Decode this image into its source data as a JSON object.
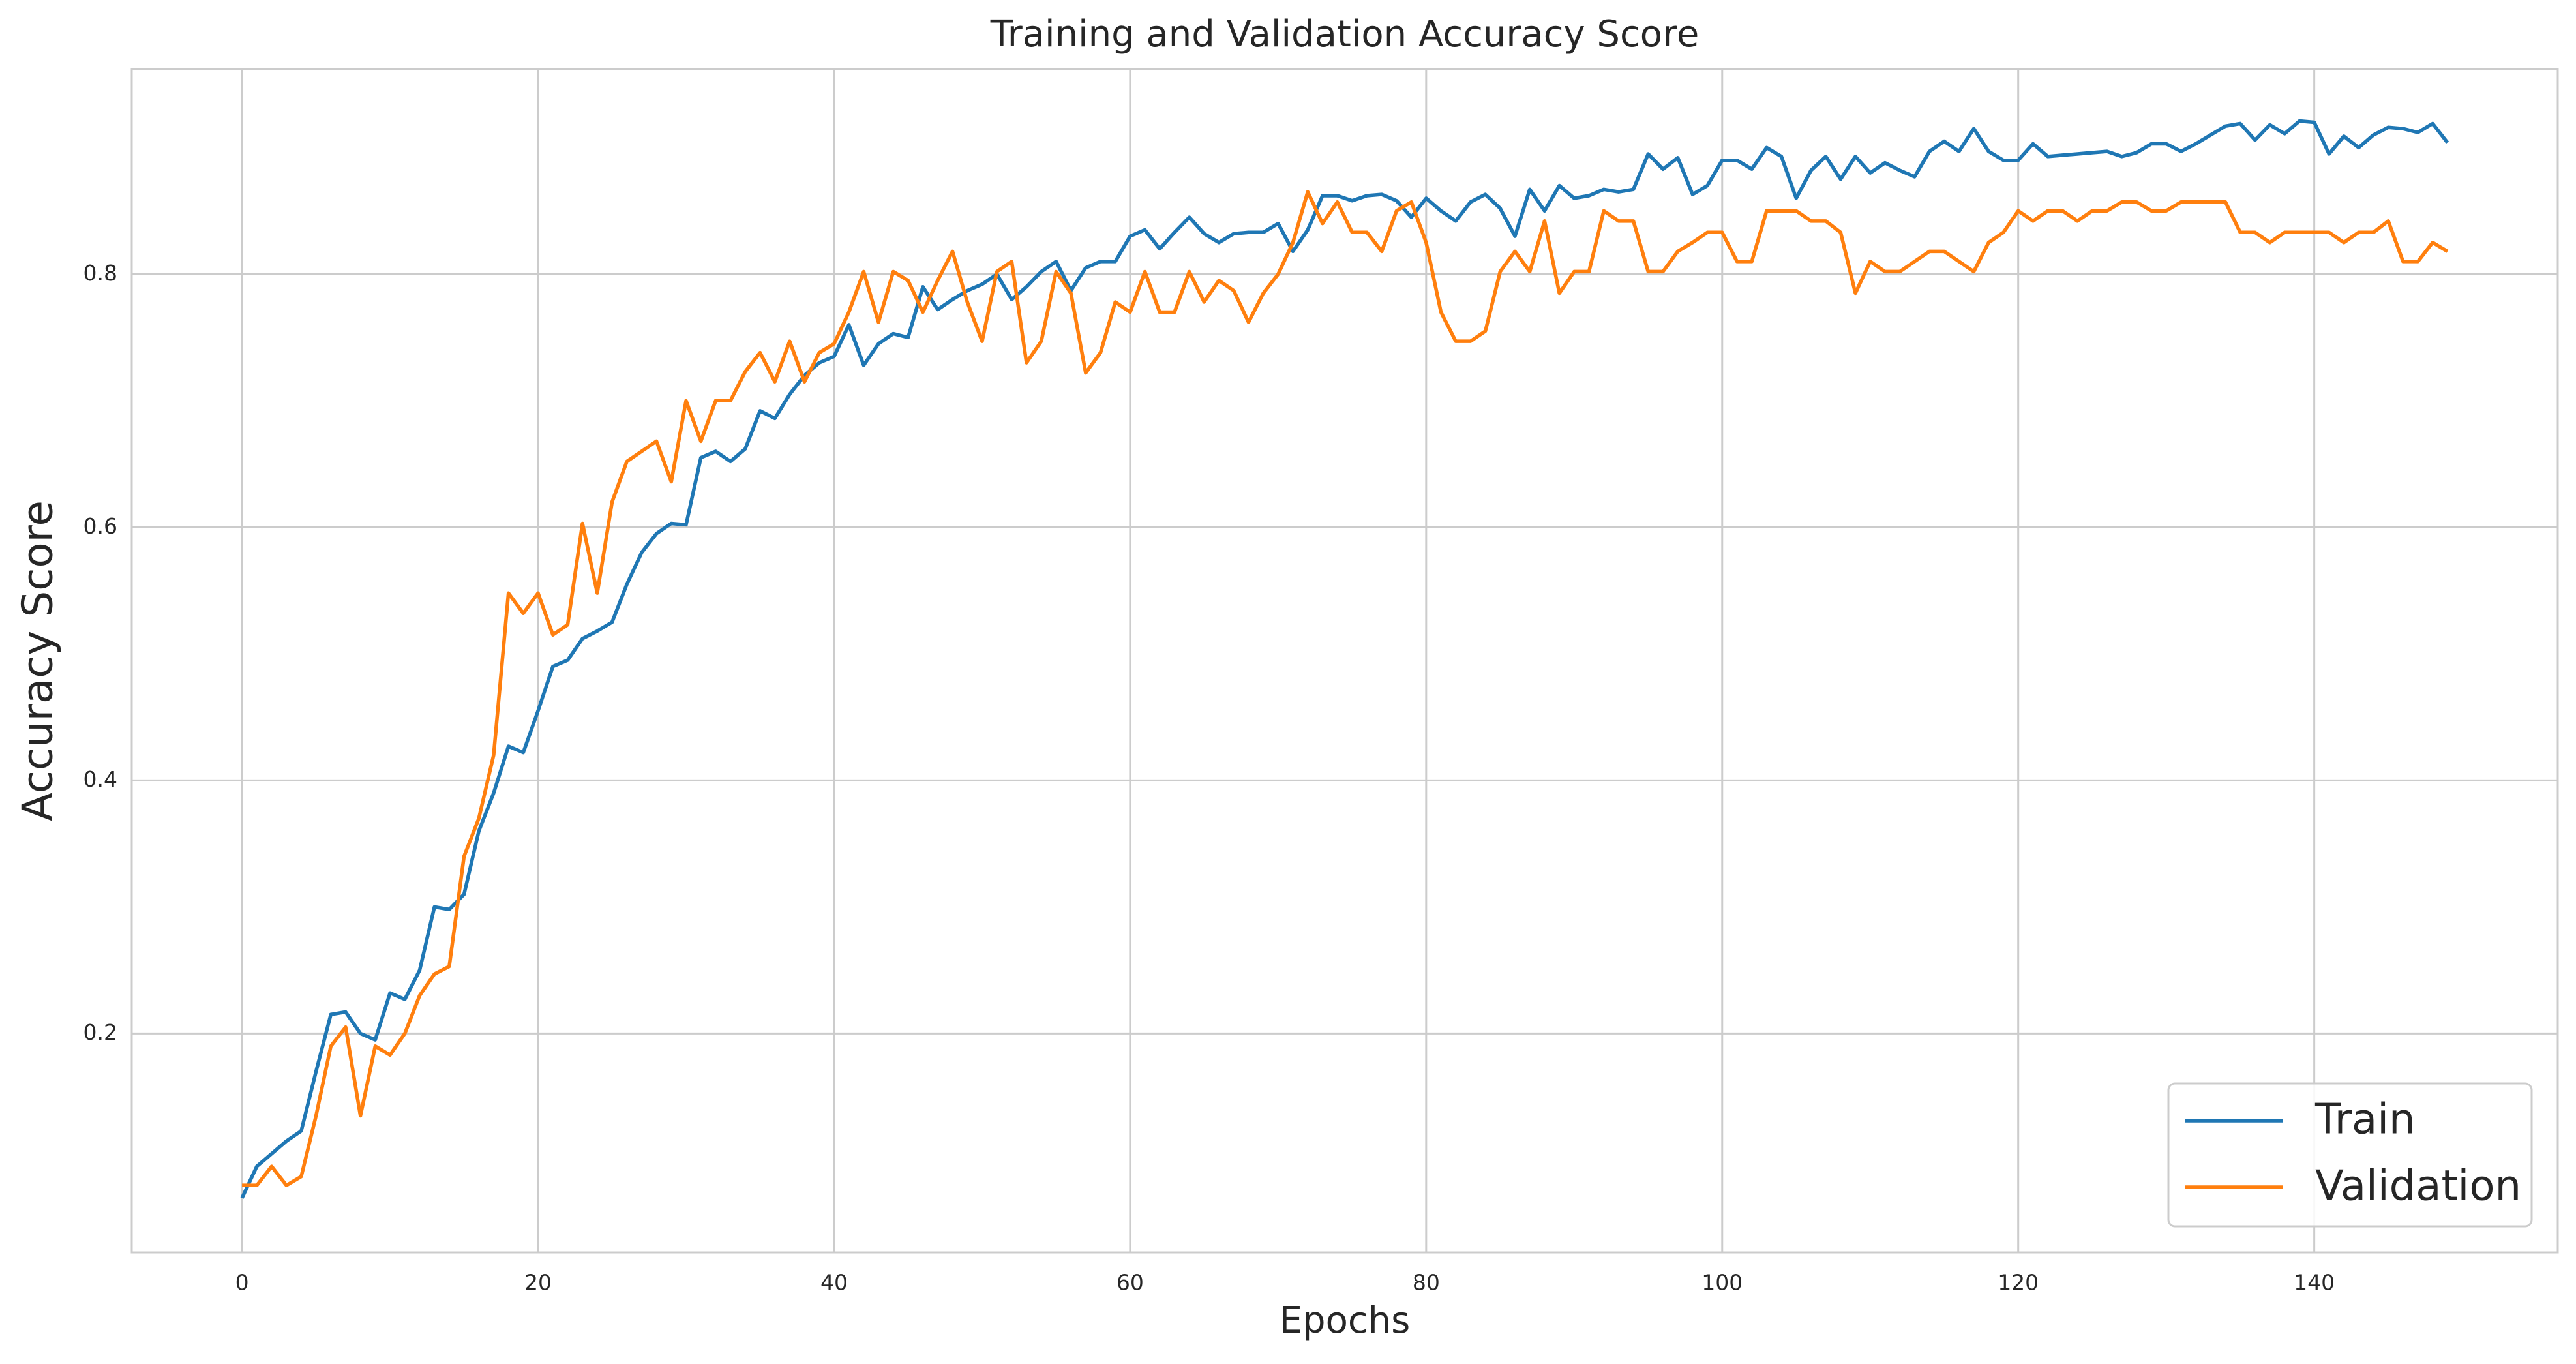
{
  "chart_data": {
    "type": "line",
    "title": "Training and Validation Accuracy Score",
    "xlabel": "Epochs",
    "ylabel": "Accuracy Score",
    "x": [
      0,
      1,
      2,
      3,
      4,
      5,
      6,
      7,
      8,
      9,
      10,
      11,
      12,
      13,
      14,
      15,
      16,
      17,
      18,
      19,
      20,
      21,
      22,
      23,
      24,
      25,
      26,
      27,
      28,
      29,
      30,
      31,
      32,
      33,
      34,
      35,
      36,
      37,
      38,
      39,
      40,
      41,
      42,
      43,
      44,
      45,
      46,
      47,
      48,
      49,
      50,
      51,
      52,
      53,
      54,
      55,
      56,
      57,
      58,
      59,
      60,
      61,
      62,
      63,
      64,
      65,
      66,
      67,
      68,
      69,
      70,
      71,
      72,
      73,
      74,
      75,
      76,
      77,
      78,
      79,
      80,
      81,
      82,
      83,
      84,
      85,
      86,
      87,
      88,
      89,
      90,
      91,
      92,
      93,
      94,
      95,
      96,
      97,
      98,
      99,
      100,
      101,
      102,
      103,
      104,
      105,
      106,
      107,
      108,
      109,
      110,
      111,
      112,
      113,
      114,
      115,
      116,
      117,
      118,
      119,
      120,
      121,
      122,
      123,
      124,
      125,
      126,
      127,
      128,
      129,
      130,
      131,
      132,
      133,
      134,
      135,
      136,
      137,
      138,
      139,
      140,
      141,
      142,
      143,
      144,
      145,
      146,
      147,
      148,
      149
    ],
    "series": [
      {
        "name": "Train",
        "color": "#1f77b4",
        "values": [
          0.07,
          0.095,
          0.105,
          0.115,
          0.123,
          0.17,
          0.215,
          0.217,
          0.2,
          0.195,
          0.232,
          0.227,
          0.25,
          0.3,
          0.298,
          0.31,
          0.36,
          0.39,
          0.427,
          0.422,
          0.455,
          0.49,
          0.495,
          0.512,
          0.518,
          0.525,
          0.555,
          0.58,
          0.595,
          0.603,
          0.602,
          0.655,
          0.66,
          0.652,
          0.662,
          0.692,
          0.686,
          0.705,
          0.72,
          0.73,
          0.735,
          0.76,
          0.728,
          0.745,
          0.753,
          0.75,
          0.79,
          0.772,
          0.78,
          0.787,
          0.792,
          0.8,
          0.78,
          0.79,
          0.802,
          0.81,
          0.787,
          0.805,
          0.81,
          0.81,
          0.83,
          0.835,
          0.82,
          0.833,
          0.845,
          0.832,
          0.825,
          0.832,
          0.833,
          0.833,
          0.84,
          0.818,
          0.835,
          0.862,
          0.862,
          0.858,
          0.862,
          0.863,
          0.858,
          0.845,
          0.86,
          0.85,
          0.842,
          0.857,
          0.863,
          0.852,
          0.83,
          0.867,
          0.85,
          0.87,
          0.86,
          0.862,
          0.867,
          0.865,
          0.867,
          0.895,
          0.883,
          0.892,
          0.863,
          0.87,
          0.89,
          0.89,
          0.883,
          0.9,
          0.893,
          0.86,
          0.882,
          0.893,
          0.875,
          0.893,
          0.88,
          0.888,
          0.882,
          0.877,
          0.897,
          0.905,
          0.897,
          0.915,
          0.897,
          0.89,
          0.89,
          0.903,
          0.893,
          0.894,
          0.895,
          0.896,
          0.897,
          0.893,
          0.896,
          0.903,
          0.903,
          0.897,
          0.903,
          0.91,
          0.917,
          0.919,
          0.906,
          0.918,
          0.911,
          0.921,
          0.92,
          0.895,
          0.909,
          0.9,
          0.91,
          0.916,
          0.915,
          0.912,
          0.919,
          0.904
        ]
      },
      {
        "name": "Validation",
        "color": "#ff7f0e",
        "values": [
          0.08,
          0.08,
          0.095,
          0.08,
          0.087,
          0.135,
          0.19,
          0.205,
          0.135,
          0.19,
          0.183,
          0.2,
          0.23,
          0.247,
          0.253,
          0.34,
          0.37,
          0.42,
          0.548,
          0.532,
          0.548,
          0.515,
          0.523,
          0.603,
          0.548,
          0.62,
          0.652,
          0.66,
          0.668,
          0.636,
          0.7,
          0.668,
          0.7,
          0.7,
          0.723,
          0.738,
          0.715,
          0.747,
          0.715,
          0.738,
          0.745,
          0.77,
          0.802,
          0.762,
          0.802,
          0.795,
          0.77,
          0.795,
          0.818,
          0.778,
          0.747,
          0.802,
          0.81,
          0.73,
          0.747,
          0.802,
          0.785,
          0.722,
          0.738,
          0.778,
          0.77,
          0.802,
          0.77,
          0.77,
          0.802,
          0.778,
          0.795,
          0.787,
          0.762,
          0.785,
          0.8,
          0.825,
          0.865,
          0.84,
          0.857,
          0.833,
          0.833,
          0.818,
          0.85,
          0.857,
          0.825,
          0.77,
          0.747,
          0.747,
          0.755,
          0.802,
          0.818,
          0.802,
          0.842,
          0.785,
          0.802,
          0.802,
          0.85,
          0.842,
          0.842,
          0.802,
          0.802,
          0.818,
          0.825,
          0.833,
          0.833,
          0.81,
          0.81,
          0.85,
          0.85,
          0.85,
          0.842,
          0.842,
          0.833,
          0.785,
          0.81,
          0.802,
          0.802,
          0.81,
          0.818,
          0.818,
          0.81,
          0.802,
          0.825,
          0.833,
          0.85,
          0.842,
          0.85,
          0.85,
          0.842,
          0.85,
          0.85,
          0.857,
          0.857,
          0.85,
          0.85,
          0.857,
          0.857,
          0.857,
          0.857,
          0.833,
          0.833,
          0.825,
          0.833,
          0.833,
          0.833,
          0.833,
          0.825,
          0.833,
          0.833,
          0.842,
          0.81,
          0.81,
          0.825,
          0.818
        ]
      }
    ],
    "xlim": [
      -7.45,
      156.45
    ],
    "ylim": [
      0.027,
      0.962
    ],
    "xticks": [
      0,
      20,
      40,
      60,
      80,
      100,
      120,
      140
    ],
    "yticks": [
      0.2,
      0.4,
      0.6,
      0.8
    ],
    "grid": true,
    "legend": "lower right"
  }
}
